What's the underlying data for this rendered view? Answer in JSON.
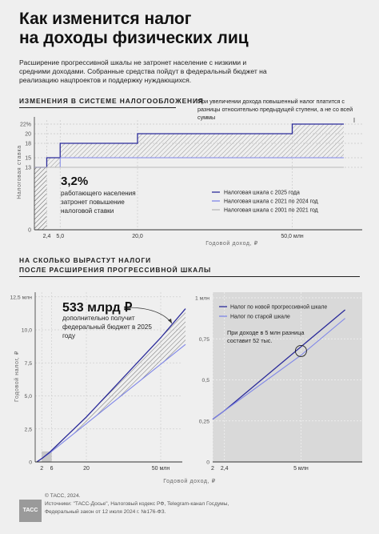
{
  "title_line1": "Как изменится налог",
  "title_line2": "на доходы физических лиц",
  "intro": "Расширение прогрессивной шкалы не затронет население с низкими и средними доходами. Собранные средства пойдут в федеральный бюджет на реализацию нацпроектов и поддержку нуждающихся.",
  "section1_title": "ИЗМЕНЕНИЯ В СИСТЕМЕ НАЛОГООБЛОЖЕНИЯ",
  "section1_note": "При увеличении дохода повышенный налог платится с разницы относительно предыдущей ступени, а не со всей суммы",
  "section2_title_line1": "НА СКОЛЬКО ВЫРАСТУТ НАЛОГИ",
  "section2_title_line2": "ПОСЛЕ РАСШИРЕНИЯ ПРОГРЕССИВНОЙ ШКАЛЫ",
  "callout1_value": "3,2%",
  "callout1_text": "работающего населения затронет повышение налоговой ставки",
  "callout2_value": "533 млрд ₽",
  "callout2_text": "дополнительно получит федеральный бюджет в 2025 году",
  "callout3_text": "При доходе в 5 млн разница составит 52 тыс.",
  "footer_line1": "© ТАСС, 2024.",
  "footer_line2": "Источники: \"ТАСС-Досье\", Налоговый кодекс РФ, Telegram-канал Госдумы,",
  "footer_line3": "Федеральный закон от 12 июля 2024 г. №176-ФЗ.",
  "logo_text": "ТАСС",
  "colors": {
    "scale_2025": "#2b2b9a",
    "scale_2021": "#7f86e8",
    "scale_2001": "#b8b8b8",
    "hatch": "#555555",
    "panel": "#d9d9d9"
  },
  "chart_data": [
    {
      "type": "line",
      "title": "",
      "xlabel": "Годовой доход, ₽",
      "ylabel": "Налоговая ставка",
      "x_tick_labels": [
        "2,4",
        "5,0",
        "20,0",
        "50,0 млн"
      ],
      "y_tick_labels": [
        "0",
        "13",
        "15",
        "18",
        "20",
        "22%"
      ],
      "xlim": [
        0,
        60
      ],
      "ylim": [
        0,
        22
      ],
      "legend_position": "right",
      "series": [
        {
          "name": "Налоговая шкала с 2025 года",
          "steps": [
            [
              0,
              13
            ],
            [
              2.4,
              15
            ],
            [
              5,
              18
            ],
            [
              20,
              20
            ],
            [
              50,
              22
            ],
            [
              60,
              22
            ]
          ]
        },
        {
          "name": "Налоговая шкала с 2021 по 2024 год",
          "steps": [
            [
              0,
              13
            ],
            [
              5,
              15
            ],
            [
              60,
              15
            ]
          ]
        },
        {
          "name": "Налоговая шкала с 2001 по 2021 год",
          "steps": [
            [
              0,
              13
            ],
            [
              60,
              13
            ]
          ]
        }
      ]
    },
    {
      "type": "line",
      "title": "",
      "xlabel": "Годовой доход, ₽",
      "ylabel": "Годовой налог, ₽",
      "x_tick_labels": [
        "2",
        "6",
        "20",
        "50 млн"
      ],
      "y_tick_labels": [
        "0",
        "2,5",
        "5,0",
        "7,5",
        "10,0",
        "12,5 млн"
      ],
      "xlim": [
        0,
        60
      ],
      "ylim": [
        0,
        12.5
      ],
      "series": [
        {
          "x": [
            0,
            2.4,
            5,
            20,
            50,
            60
          ],
          "values": [
            0,
            0.312,
            0.702,
            3.402,
            9.402,
            11.602
          ]
        },
        {
          "x": [
            0,
            5,
            60
          ],
          "values": [
            0,
            0.65,
            8.9
          ]
        }
      ]
    },
    {
      "type": "line",
      "title": "",
      "x_tick_labels": [
        "2",
        "2,4",
        "5 млн"
      ],
      "y_tick_labels": [
        "0",
        "0,25",
        "0,5",
        "0,75",
        "1 млн"
      ],
      "xlim": [
        2,
        6.5
      ],
      "ylim": [
        0,
        1
      ],
      "legend_position": "top-left",
      "series": [
        {
          "name": "Налог по новой прогрессивной шкале",
          "x": [
            2,
            2.4,
            5,
            6.5
          ],
          "values": [
            0.26,
            0.312,
            0.702,
            0.927
          ]
        },
        {
          "name": "Налог по старой шкале",
          "x": [
            2,
            5,
            6.5
          ],
          "values": [
            0.26,
            0.65,
            0.875
          ]
        }
      ]
    }
  ]
}
